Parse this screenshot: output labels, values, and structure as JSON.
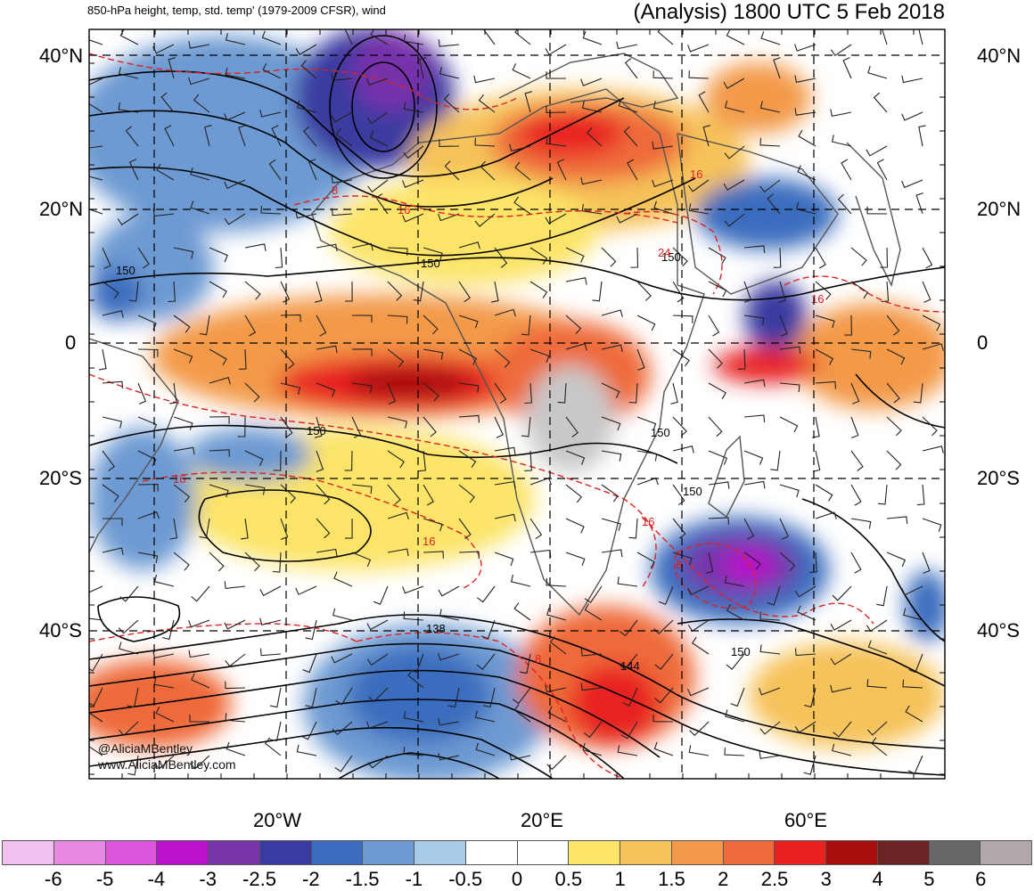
{
  "header": {
    "title_left": "850-hPa height, temp, std. temp' (1979-2009 CFSR), wind",
    "title_right": "(Analysis) 1800 UTC 5 Feb 2018"
  },
  "axes": {
    "lat_labels": [
      "40°N",
      "20°N",
      "0",
      "20°S",
      "40°S"
    ],
    "lon_labels": [
      "20°W",
      "20°E",
      "60°E"
    ]
  },
  "contour_labels": {
    "height": [
      "150",
      "150",
      "150",
      "150",
      "150",
      "150",
      "138",
      "144",
      "150"
    ],
    "temperature": [
      "16",
      "16",
      "16",
      "8",
      "16",
      "16",
      "8",
      "24",
      "16",
      "8"
    ]
  },
  "credit": {
    "twitter": "@AliciaMBentley",
    "website": "www.AliciaMBentley.com"
  },
  "colorbar": {
    "labels": [
      "-6",
      "-5",
      "-4",
      "-3",
      "-2.5",
      "-2",
      "-1.5",
      "-1",
      "-0.5",
      "0",
      "0.5",
      "1",
      "1.5",
      "2",
      "2.5",
      "3",
      "4",
      "5",
      "6"
    ],
    "colors": [
      "#f0c0ee",
      "#e888e4",
      "#dd55dd",
      "#bb11cc",
      "#7733aa",
      "#3a3aa0",
      "#3b6dbe",
      "#6d9ad2",
      "#a8cbe8",
      "#ffffff",
      "#ffffff",
      "#fce467",
      "#f6c25a",
      "#f39a4a",
      "#ee6a3a",
      "#e82020",
      "#a80d0d",
      "#6a2424",
      "#676767",
      "#b0a8a8"
    ]
  },
  "colors": {
    "land_gray": "#c8c8c8",
    "coast": "#555555",
    "height_contour": "#000000",
    "temp_contour": "#e02020"
  }
}
